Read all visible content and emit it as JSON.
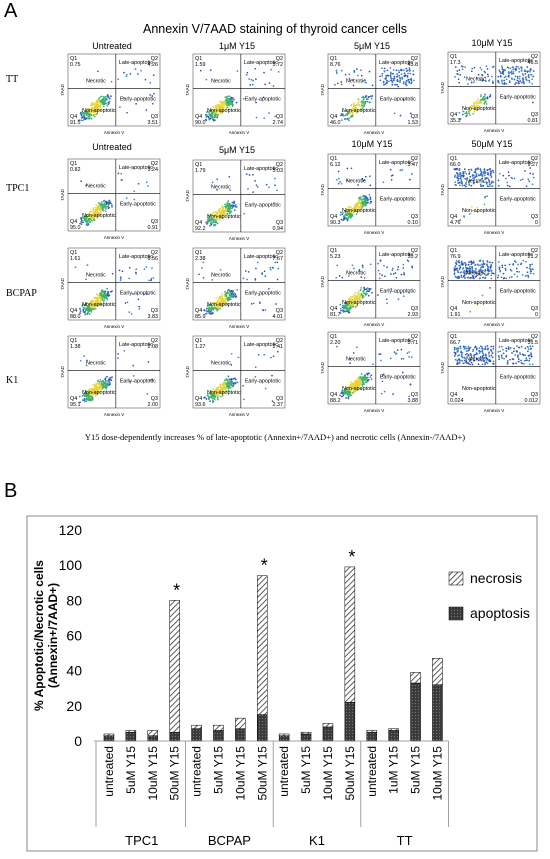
{
  "panel_a": {
    "label": "A",
    "title": "Annexin V/7AAD staining of thyroid cancer cells",
    "caption": "Y15 dose-dependently increases % of late-apoptotic (Annexin+/7AAD+) and necrotic cells (Annexin-/7AAD+)",
    "axis_labels": {
      "x": "Annexin V",
      "y": "7AAD"
    },
    "quadrant_labels": {
      "necrotic": "Necrotic",
      "late": "Late-apoptotic",
      "early": "Early-apoptotic",
      "non": "Non-apoptotic"
    },
    "rows": [
      {
        "name": "TT",
        "plots": [
          {
            "title": "Untreated",
            "q1": "Q1\n0.75",
            "q2": "Q2\n4.26",
            "q3": "Q3\n3.51",
            "q4": "Q4\n91.5"
          },
          {
            "title": "1μM Y15",
            "q1": "Q1\n1.59",
            "q2": "Q2\n5.72",
            "q3": "Q3\n2.74",
            "q4": "Q4\n90.0"
          },
          {
            "title": "5μM Y15",
            "q1": "Q1\n8.76",
            "q2": "Q2\n43.8",
            "q3": "Q3\n1.53",
            "q4": "Q4\n46.0"
          },
          {
            "title": "10μM Y15",
            "q1": "Q1\n17.3",
            "q2": "Q2\n46.5",
            "q3": "Q3\n0.81",
            "q4": "Q4\n35.3"
          }
        ]
      },
      {
        "name": "TPC1",
        "plots": [
          {
            "title": "Untreated",
            "q1": "Q1\n0.82",
            "q2": "Q2\n3.24",
            "q3": "Q3\n0.91",
            "q4": "Q4\n95.0"
          },
          {
            "title": "5μM Y15",
            "q1": "Q1\n1.79",
            "q2": "Q2\n5.03",
            "q3": "Q3\n0.94",
            "q4": "Q4\n92.2"
          },
          {
            "title": "10μM Y15",
            "q1": "Q1\n6.12",
            "q2": "Q2\n3.47",
            "q3": "Q3\n0.10",
            "q4": "Q4\n90.3"
          },
          {
            "title": "50μM Y15",
            "q1": "Q1\n66.0",
            "q2": "Q2\n9.27",
            "q3": "Q3\n0",
            "q4": "Q4\n4.76"
          }
        ]
      },
      {
        "name": "BCPAP",
        "plots": [
          {
            "title": "",
            "q1": "Q1\n1.61",
            "q2": "Q2\n6.56",
            "q3": "Q3\n3.83",
            "q4": "Q4\n88.0"
          },
          {
            "title": "",
            "q1": "Q1\n2.38",
            "q2": "Q2\n7.67",
            "q3": "Q3\n4.01",
            "q4": "Q4\n85.9"
          },
          {
            "title": "",
            "q1": "Q1\n5.23",
            "q2": "Q2\n10.2",
            "q3": "Q3\n2.93",
            "q4": "Q4\n81.7"
          },
          {
            "title": "",
            "q1": "Q1\n76.9",
            "q2": "Q2\n21.2",
            "q3": "Q3\n0",
            "q4": "Q4\n1.91"
          }
        ]
      },
      {
        "name": "K1",
        "plots": [
          {
            "title": "",
            "q1": "Q1\n1.38",
            "q2": "Q2\n2.08",
            "q3": "Q3\n2.00",
            "q4": "Q4\n95.1"
          },
          {
            "title": "",
            "q1": "Q1\n1.27",
            "q2": "Q2\n2.41",
            "q3": "Q3\n2.37",
            "q4": "Q4\n93.6"
          },
          {
            "title": "",
            "q1": "Q1\n2.20",
            "q2": "Q2\n5.71",
            "q3": "Q3\n3.88",
            "q4": "Q4\n88.2"
          },
          {
            "title": "",
            "q1": "Q1\n66.7",
            "q2": "Q2\n31.5",
            "q3": "Q3\n0.012",
            "q4": "Q4\n0.024"
          }
        ]
      }
    ]
  },
  "panel_b": {
    "label": "B"
  },
  "chart_data": {
    "type": "bar",
    "stacked": true,
    "categories": [
      "untreated",
      "5uM Y15",
      "10uM Y15",
      "50uM Y15",
      "untreated",
      "5uM Y15",
      "10uM Y15",
      "50uM Y15",
      "untreated",
      "5uM Y15",
      "10uM Y15",
      "50uM Y15",
      "untreated",
      "1uM Y15",
      "5uM Y15",
      "10uM Y15"
    ],
    "groups": [
      {
        "name": "TPC1",
        "count": 4
      },
      {
        "name": "BCPAP",
        "count": 4
      },
      {
        "name": "K1",
        "count": 4
      },
      {
        "name": "TT",
        "count": 4
      }
    ],
    "series": [
      {
        "name": "apoptosis",
        "values": [
          3,
          5,
          3,
          5,
          7,
          6,
          7,
          15,
          3,
          4,
          8,
          22,
          5,
          6,
          33,
          32
        ],
        "color": "#4a4a4a"
      },
      {
        "name": "necrosis",
        "values": [
          1,
          1,
          3,
          75,
          2,
          3,
          6,
          79,
          1,
          1,
          2,
          77,
          1,
          1,
          6,
          15
        ],
        "color": "#c8c8c8"
      }
    ],
    "significance": [
      "",
      "",
      "",
      "*",
      "",
      "",
      "",
      "*",
      "",
      "",
      "",
      "*",
      "",
      "",
      "",
      ""
    ],
    "ylabel": "% Apoptotic/Necrotic cells (Annexin+/7AAD+)",
    "yticks": [
      0,
      20,
      40,
      60,
      80,
      100,
      120
    ],
    "ylim": [
      0,
      120
    ],
    "legend_position": "right"
  }
}
